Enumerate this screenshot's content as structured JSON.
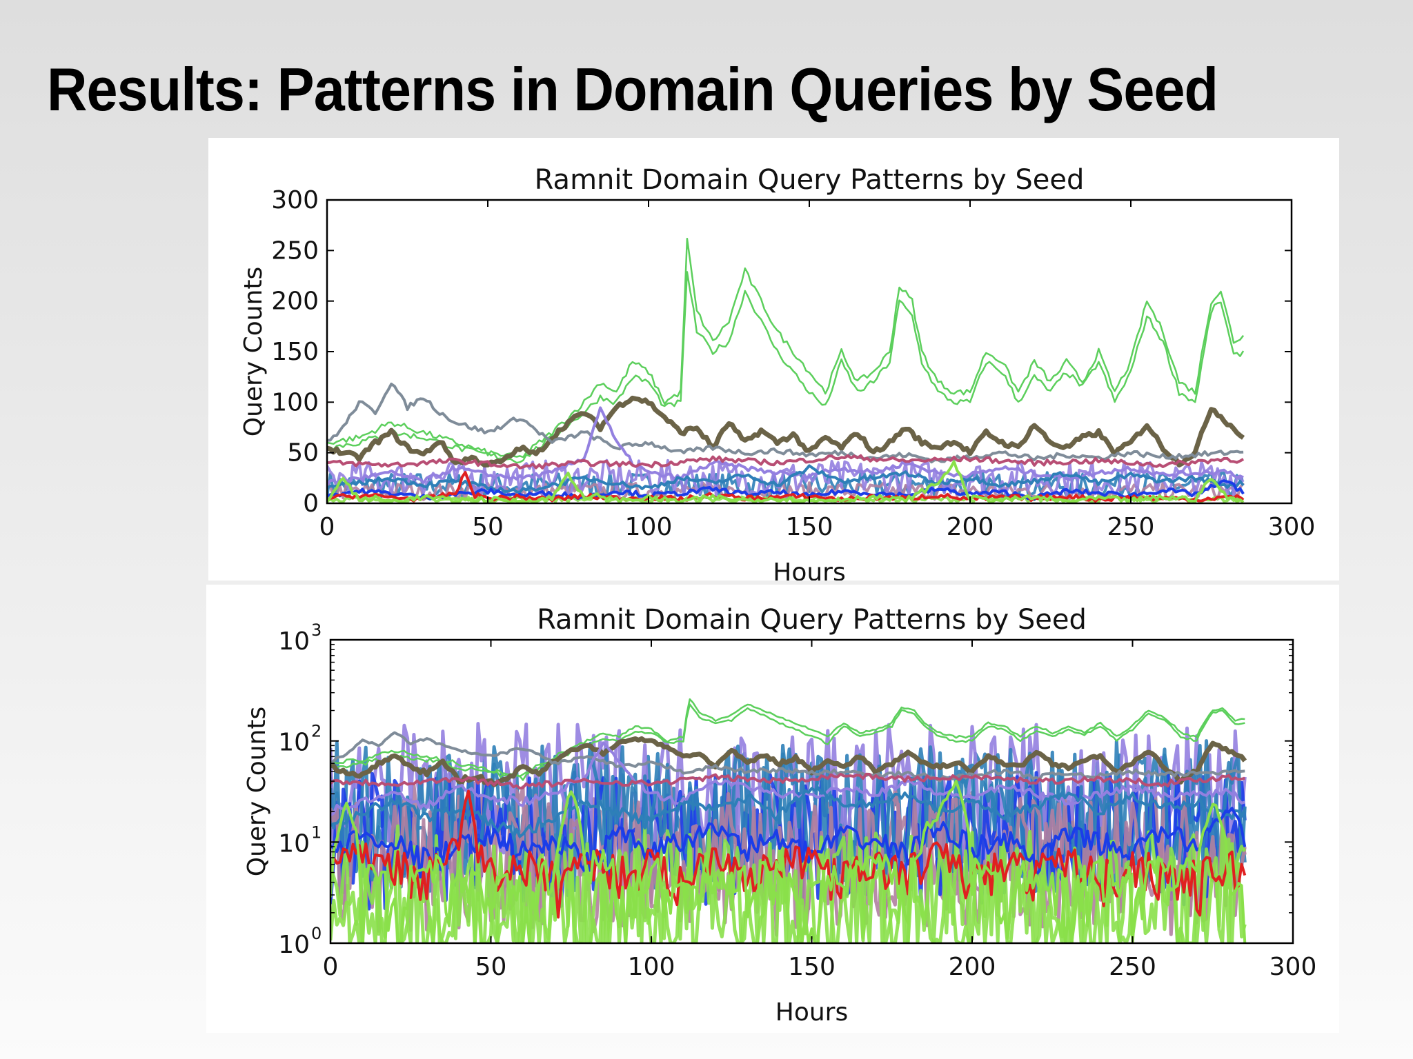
{
  "slide": {
    "title": "Results: Patterns in Domain Queries by Seed"
  },
  "chart_data": [
    {
      "type": "line",
      "title": "Ramnit Domain Query Patterns by Seed",
      "xlabel": "Hours",
      "ylabel": "Query Counts",
      "xlim": [
        0,
        300
      ],
      "ylim": [
        0,
        300
      ],
      "yscale": "linear",
      "xticks": [
        "0",
        "50",
        "100",
        "150",
        "200",
        "250",
        "300"
      ],
      "yticks": [
        "0",
        "50",
        "100",
        "150",
        "200",
        "250",
        "300"
      ],
      "grid": false,
      "legend": "none",
      "series": [
        {
          "color": "#5ccf5c",
          "x": [
            0,
            10,
            20,
            30,
            40,
            50,
            60,
            70,
            80,
            85,
            90,
            95,
            100,
            105,
            110,
            112,
            115,
            120,
            125,
            130,
            135,
            140,
            145,
            150,
            155,
            160,
            165,
            170,
            175,
            178,
            182,
            185,
            190,
            195,
            200,
            205,
            210,
            215,
            220,
            225,
            230,
            235,
            240,
            245,
            250,
            255,
            260,
            265,
            270,
            275,
            278,
            282,
            285
          ],
          "y": [
            60,
            65,
            80,
            70,
            60,
            50,
            45,
            70,
            100,
            120,
            110,
            140,
            130,
            100,
            110,
            260,
            190,
            160,
            180,
            230,
            200,
            170,
            150,
            130,
            110,
            150,
            120,
            130,
            150,
            215,
            200,
            150,
            120,
            110,
            110,
            150,
            140,
            110,
            140,
            120,
            140,
            120,
            150,
            110,
            140,
            200,
            170,
            120,
            110,
            200,
            210,
            160,
            165
          ]
        },
        {
          "color": "#5ccf5c",
          "x": [
            0,
            10,
            20,
            30,
            40,
            50,
            60,
            70,
            80,
            85,
            90,
            95,
            100,
            105,
            110,
            112,
            115,
            120,
            125,
            130,
            135,
            140,
            145,
            150,
            155,
            160,
            165,
            170,
            175,
            178,
            182,
            185,
            190,
            195,
            200,
            205,
            210,
            215,
            220,
            225,
            230,
            235,
            240,
            245,
            250,
            255,
            260,
            265,
            270,
            275,
            278,
            282,
            285
          ],
          "y": [
            55,
            60,
            70,
            65,
            55,
            48,
            42,
            65,
            90,
            105,
            100,
            125,
            120,
            95,
            100,
            230,
            170,
            150,
            160,
            210,
            180,
            150,
            130,
            110,
            95,
            140,
            110,
            120,
            140,
            200,
            185,
            140,
            110,
            100,
            100,
            140,
            130,
            100,
            125,
            110,
            130,
            115,
            140,
            100,
            130,
            185,
            160,
            110,
            100,
            190,
            200,
            145,
            150
          ]
        },
        {
          "color": "#6b6347",
          "x": [
            0,
            5,
            10,
            15,
            20,
            25,
            30,
            35,
            40,
            45,
            50,
            55,
            60,
            65,
            70,
            75,
            80,
            85,
            90,
            95,
            100,
            105,
            110,
            115,
            120,
            125,
            130,
            135,
            140,
            145,
            150,
            155,
            160,
            165,
            170,
            175,
            180,
            185,
            190,
            195,
            200,
            205,
            210,
            215,
            220,
            225,
            230,
            235,
            240,
            245,
            250,
            255,
            260,
            265,
            270,
            275,
            280,
            285
          ],
          "y": [
            55,
            50,
            45,
            60,
            70,
            55,
            48,
            62,
            40,
            45,
            38,
            42,
            55,
            48,
            65,
            80,
            90,
            75,
            95,
            105,
            100,
            85,
            70,
            75,
            55,
            80,
            60,
            72,
            60,
            68,
            50,
            65,
            55,
            70,
            50,
            60,
            75,
            60,
            55,
            62,
            50,
            70,
            60,
            55,
            78,
            60,
            55,
            65,
            70,
            50,
            60,
            78,
            55,
            40,
            50,
            95,
            80,
            65
          ]
        },
        {
          "color": "#7f8c99",
          "x": [
            0,
            5,
            10,
            15,
            20,
            25,
            30,
            35,
            40,
            50,
            60,
            70,
            80,
            90,
            100,
            110,
            120,
            130,
            140,
            150,
            160,
            170,
            180,
            190,
            200,
            210,
            220,
            230,
            240,
            250,
            260,
            270,
            280,
            285
          ],
          "y": [
            60,
            75,
            100,
            90,
            120,
            95,
            105,
            90,
            80,
            70,
            85,
            60,
            70,
            55,
            60,
            50,
            55,
            50,
            52,
            48,
            50,
            45,
            48,
            42,
            46,
            50,
            44,
            48,
            45,
            50,
            46,
            48,
            50,
            52
          ]
        },
        {
          "color": "#9380e0",
          "x": [
            0,
            10,
            20,
            30,
            40,
            50,
            60,
            70,
            80,
            85,
            90,
            95,
            100,
            110,
            120,
            130,
            140,
            150,
            160,
            170,
            180,
            190,
            200,
            210,
            220,
            230,
            240,
            250,
            260,
            270,
            280,
            285
          ],
          "y": [
            20,
            25,
            30,
            22,
            35,
            28,
            25,
            30,
            45,
            95,
            60,
            40,
            30,
            25,
            40,
            35,
            30,
            28,
            35,
            30,
            40,
            30,
            28,
            35,
            30,
            25,
            30,
            35,
            28,
            30,
            32,
            25
          ]
        },
        {
          "color": "#b84e74",
          "x": [
            0,
            20,
            40,
            60,
            80,
            100,
            120,
            140,
            160,
            180,
            200,
            220,
            240,
            260,
            280,
            285
          ],
          "y": [
            40,
            38,
            42,
            36,
            40,
            38,
            44,
            40,
            46,
            42,
            44,
            40,
            42,
            38,
            44,
            42
          ]
        },
        {
          "color": "#2e7fb8",
          "x": [
            0,
            10,
            20,
            30,
            40,
            50,
            60,
            70,
            80,
            90,
            100,
            110,
            120,
            130,
            140,
            150,
            160,
            170,
            180,
            190,
            200,
            210,
            220,
            230,
            240,
            250,
            260,
            270,
            280,
            285
          ],
          "y": [
            15,
            20,
            25,
            18,
            22,
            15,
            12,
            18,
            25,
            20,
            15,
            25,
            20,
            28,
            18,
            35,
            22,
            25,
            30,
            20,
            25,
            18,
            22,
            30,
            20,
            28,
            22,
            25,
            18,
            20
          ]
        },
        {
          "color": "#1b3de8",
          "x": [
            0,
            10,
            20,
            30,
            40,
            50,
            60,
            70,
            80,
            90,
            100,
            110,
            120,
            130,
            140,
            150,
            160,
            170,
            180,
            190,
            200,
            210,
            220,
            230,
            240,
            250,
            260,
            270,
            280,
            285
          ],
          "y": [
            8,
            12,
            10,
            6,
            9,
            12,
            8,
            10,
            6,
            12,
            8,
            10,
            14,
            9,
            11,
            7,
            12,
            10,
            8,
            14,
            9,
            11,
            6,
            12,
            10,
            8,
            13,
            9,
            22,
            10
          ]
        },
        {
          "color": "#e02020",
          "x": [
            0,
            10,
            20,
            30,
            40,
            43,
            46,
            50,
            60,
            70,
            80,
            90,
            100,
            110,
            120,
            130,
            140,
            150,
            160,
            170,
            180,
            190,
            200,
            210,
            220,
            230,
            240,
            250,
            260,
            270,
            280,
            285
          ],
          "y": [
            5,
            8,
            6,
            4,
            10,
            30,
            8,
            5,
            6,
            4,
            7,
            5,
            6,
            4,
            8,
            5,
            6,
            7,
            4,
            6,
            5,
            8,
            4,
            6,
            5,
            7,
            4,
            6,
            5,
            4,
            6,
            5
          ]
        },
        {
          "color": "#8ae04a",
          "x": [
            0,
            5,
            10,
            15,
            20,
            30,
            40,
            50,
            60,
            70,
            75,
            80,
            85,
            90,
            100,
            110,
            120,
            130,
            140,
            150,
            160,
            170,
            180,
            190,
            195,
            200,
            210,
            220,
            230,
            240,
            250,
            260,
            270,
            275,
            280,
            285
          ],
          "y": [
            2,
            25,
            3,
            5,
            2,
            6,
            3,
            4,
            2,
            5,
            30,
            4,
            8,
            3,
            5,
            2,
            6,
            3,
            5,
            2,
            4,
            6,
            3,
            20,
            40,
            5,
            3,
            6,
            2,
            5,
            3,
            6,
            4,
            25,
            5,
            3
          ]
        },
        {
          "color": "#a38f72",
          "x": [
            0,
            80,
            85,
            88,
            90,
            150,
            148,
            146,
            144,
            170,
            172,
            174,
            178,
            180,
            182,
            192,
            194,
            196,
            198,
            200
          ],
          "y": [
            0,
            0,
            0,
            0,
            0,
            0,
            0,
            0,
            0,
            0,
            0,
            0,
            0,
            0,
            0,
            0,
            0,
            0,
            0,
            0
          ]
        }
      ]
    },
    {
      "type": "line",
      "title": "Ramnit Domain Query Patterns by Seed",
      "xlabel": "Hours",
      "ylabel": "Query Counts",
      "xlim": [
        0,
        300
      ],
      "ylim": [
        1,
        1000
      ],
      "yscale": "log",
      "xticks": [
        "0",
        "50",
        "100",
        "150",
        "200",
        "250",
        "300"
      ],
      "yticks_base": "10",
      "yticks_exp": [
        "0",
        "1",
        "2",
        "3"
      ],
      "grid": false,
      "legend": "none",
      "series_ref": "same seeds as linear panel"
    }
  ]
}
